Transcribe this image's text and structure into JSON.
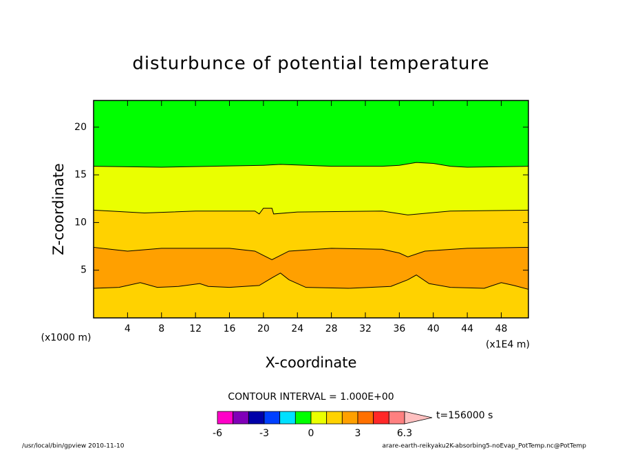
{
  "chart_data": {
    "type": "contourf",
    "title": "disturbunce of potential temperature",
    "x_label": "X-coordinate",
    "y_label": "Z-coordinate",
    "x_unit_left": "(x1000 m)",
    "x_unit_right": "(x1E4 m)",
    "xlim": [
      0,
      51.2
    ],
    "ylim": [
      0,
      22.8
    ],
    "xticks": [
      4,
      8,
      12,
      16,
      20,
      24,
      28,
      32,
      36,
      40,
      44,
      48
    ],
    "yticks": [
      5,
      10,
      15,
      20
    ],
    "band_colors": [
      "#ffd200",
      "#ffa000",
      "#ffd200",
      "#eaff00",
      "#00ff00"
    ],
    "contour_lines": [
      {
        "x": [
          0,
          3,
          5.5,
          7.5,
          10,
          12.5,
          13.5,
          16,
          19.5,
          21,
          22,
          23,
          25,
          30,
          35,
          37,
          38,
          39.5,
          42,
          46,
          48,
          49.5,
          51.2
        ],
        "values": [
          3.1,
          3.2,
          3.7,
          3.2,
          3.3,
          3.6,
          3.3,
          3.2,
          3.4,
          4.2,
          4.7,
          4.0,
          3.2,
          3.1,
          3.3,
          4.0,
          4.5,
          3.6,
          3.2,
          3.1,
          3.7,
          3.4,
          3.0
        ]
      },
      {
        "x": [
          0,
          2,
          4,
          8,
          16,
          19,
          21,
          23,
          28,
          34,
          36,
          37,
          39,
          44,
          51.2
        ],
        "values": [
          7.4,
          7.2,
          7.0,
          7.3,
          7.3,
          7.0,
          6.1,
          7.0,
          7.3,
          7.2,
          6.8,
          6.4,
          7.0,
          7.3,
          7.4
        ]
      },
      {
        "x": [
          0,
          6,
          12,
          19,
          19.5,
          20,
          21,
          21.2,
          24,
          34,
          37,
          42,
          51.2
        ],
        "values": [
          11.3,
          11.0,
          11.2,
          11.2,
          10.9,
          11.5,
          11.5,
          10.9,
          11.1,
          11.2,
          10.8,
          11.2,
          11.3
        ]
      },
      {
        "x": [
          0,
          8,
          20,
          22,
          28,
          34,
          36,
          38,
          40,
          42,
          44,
          51.2
        ],
        "values": [
          15.9,
          15.8,
          16.0,
          16.1,
          15.9,
          15.9,
          16.0,
          16.3,
          16.2,
          15.9,
          15.8,
          15.9
        ]
      }
    ],
    "contour_interval": "CONTOUR INTERVAL = 1.000E+00",
    "colorbar": {
      "colors": [
        "#ff00c8",
        "#8000b8",
        "#0000a8",
        "#0040ff",
        "#00e0ff",
        "#00ff00",
        "#eaff00",
        "#ffd200",
        "#ffa000",
        "#ff7000",
        "#ff2828",
        "#ff8080"
      ],
      "extend_color": "#ffc0c0",
      "labels": [
        "-6",
        "-3",
        "0",
        "3",
        "6.3"
      ]
    },
    "time_label": "t=156000 s",
    "footer_left": "/usr/local/bin/gpview  2010-11-10",
    "footer_right": "arare-earth-reikyaku2K-absorbing5-noEvap_PotTemp.nc@PotTemp"
  }
}
